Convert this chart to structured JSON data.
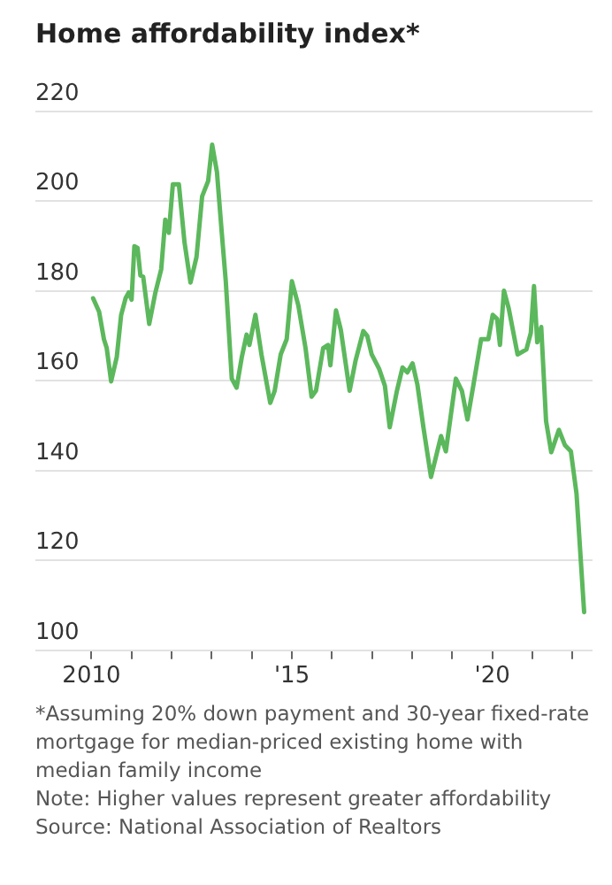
{
  "chart_data": {
    "type": "line",
    "title": "Home affordability index*",
    "x": [
      2010.04,
      2010.19,
      2010.31,
      2010.38,
      2010.49,
      2010.63,
      2010.74,
      2010.85,
      2010.93,
      2011.0,
      2011.07,
      2011.15,
      2011.22,
      2011.29,
      2011.44,
      2011.59,
      2011.74,
      2011.84,
      2011.93,
      2012.03,
      2012.18,
      2012.32,
      2012.47,
      2012.62,
      2012.76,
      2012.91,
      2013.01,
      2013.13,
      2013.25,
      2013.35,
      2013.5,
      2013.62,
      2013.75,
      2013.87,
      2013.94,
      2014.09,
      2014.24,
      2014.46,
      2014.57,
      2014.72,
      2014.87,
      2015.0,
      2015.16,
      2015.34,
      2015.49,
      2015.6,
      2015.78,
      2015.9,
      2015.96,
      2016.1,
      2016.22,
      2016.44,
      2016.59,
      2016.78,
      2016.88,
      2016.99,
      2017.18,
      2017.32,
      2017.44,
      2017.62,
      2017.76,
      2017.88,
      2018.01,
      2018.13,
      2018.28,
      2018.47,
      2018.72,
      2018.84,
      2019.09,
      2019.24,
      2019.38,
      2019.53,
      2019.72,
      2019.9,
      2020.01,
      2020.12,
      2020.19,
      2020.29,
      2020.41,
      2020.63,
      2020.85,
      2020.96,
      2021.04,
      2021.12,
      2021.22,
      2021.34,
      2021.47,
      2021.66,
      2021.81,
      2021.96,
      2022.1,
      2022.29
    ],
    "series": [
      {
        "color": "#5cb85c",
        "values": [
          178.4,
          175.4,
          169.3,
          167.3,
          159.9,
          165.3,
          174.7,
          178.4,
          179.7,
          178.1,
          190.0,
          189.6,
          183.5,
          183.2,
          172.7,
          179.5,
          184.9,
          195.9,
          193.0,
          203.8,
          203.8,
          190.9,
          181.9,
          187.6,
          201.1,
          204.5,
          212.6,
          206.5,
          193.0,
          182.2,
          160.5,
          158.5,
          165.3,
          170.3,
          168.0,
          174.7,
          165.9,
          155.1,
          157.8,
          165.9,
          169.3,
          182.2,
          176.8,
          167.3,
          156.5,
          157.8,
          167.3,
          168.0,
          163.5,
          175.7,
          171.4,
          157.8,
          164.6,
          171.1,
          170.0,
          165.9,
          162.6,
          158.9,
          149.7,
          157.8,
          163.0,
          161.9,
          163.9,
          159.2,
          149.7,
          138.6,
          147.7,
          144.3,
          160.5,
          157.8,
          151.4,
          159.2,
          169.3,
          169.3,
          174.7,
          173.8,
          168.0,
          180.1,
          176.1,
          165.9,
          167.0,
          170.7,
          181.1,
          168.6,
          172.0,
          151.1,
          144.1,
          149.1,
          145.7,
          144.3,
          134.9,
          108.5
        ]
      }
    ],
    "xlim": [
      2008.6,
      2022.5
    ],
    "xticks": [
      {
        "value": 2010,
        "label": "2010"
      },
      {
        "value": 2011,
        "label": null
      },
      {
        "value": 2012,
        "label": null
      },
      {
        "value": 2013,
        "label": null
      },
      {
        "value": 2014,
        "label": null
      },
      {
        "value": 2015,
        "label": "'15"
      },
      {
        "value": 2016,
        "label": null
      },
      {
        "value": 2017,
        "label": null
      },
      {
        "value": 2018,
        "label": null
      },
      {
        "value": 2019,
        "label": null
      },
      {
        "value": 2020,
        "label": "'20"
      },
      {
        "value": 2021,
        "label": null
      },
      {
        "value": 2022,
        "label": null
      }
    ],
    "ylim": [
      100,
      220
    ],
    "yticks": [
      100,
      120,
      140,
      160,
      180,
      200,
      220
    ],
    "grid": "y",
    "legend": false,
    "marker": "none",
    "line_style": "solid",
    "annotations": [
      "*Assuming 20% down payment and 30-year fixed-rate mortgage for median-priced existing home with median family income",
      "Note: Higher values represent greater affordability",
      "Source: National Association of Realtors"
    ]
  }
}
